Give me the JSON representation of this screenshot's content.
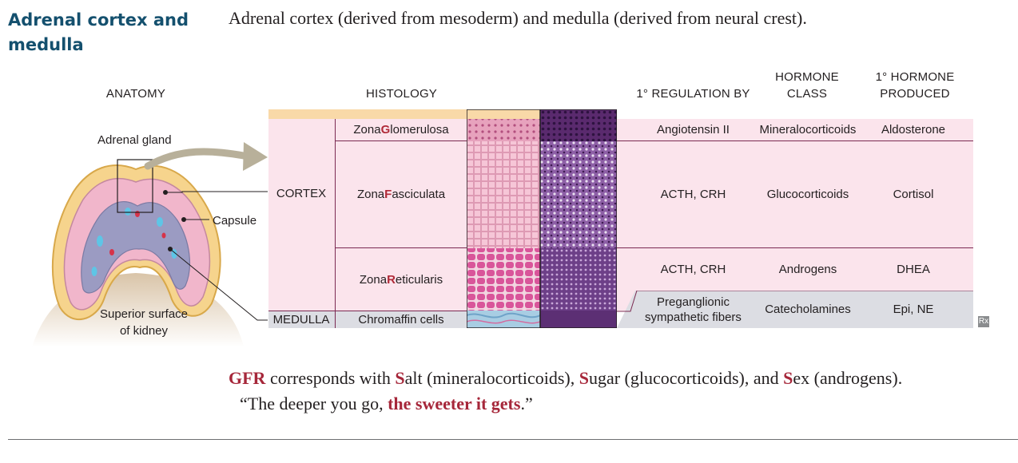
{
  "title": "Adrenal cortex and medulla",
  "intro": "Adrenal cortex (derived from mesoderm) and medulla (derived from neural crest).",
  "headers": {
    "anatomy": "ANATOMY",
    "histology": "HISTOLOGY",
    "regulation": "1° REGULATION BY",
    "hormone_class_1": "HORMONE",
    "hormone_class_2": "CLASS",
    "hormone_produced_1": "1° HORMONE",
    "hormone_produced_2": "PRODUCED"
  },
  "anatomy_labels": {
    "adrenal_gland": "Adrenal gland",
    "capsule": "Capsule",
    "kidney_1": "Superior surface",
    "kidney_2": "of kidney"
  },
  "regions": {
    "cortex": "CORTEX",
    "medulla": "MEDULLA"
  },
  "zones": [
    {
      "pre": "Zona ",
      "key": "G",
      "post": "lomerulosa",
      "regulation": "Angiotensin II",
      "class": "Mineralocorticoids",
      "hormone": "Aldosterone"
    },
    {
      "pre": "Zona ",
      "key": "F",
      "post": "asciculata",
      "regulation": "ACTH, CRH",
      "class": "Glucocorticoids",
      "hormone": "Cortisol"
    },
    {
      "pre": "Zona ",
      "key": "R",
      "post": "eticularis",
      "regulation": "ACTH, CRH",
      "class": "Androgens",
      "hormone": "DHEA"
    }
  ],
  "medulla_row": {
    "zone": "Chromaffin cells",
    "regulation_1": "Preganglionic",
    "regulation_2": "sympathetic fibers",
    "class": "Catecholamines",
    "hormone": "Epi, NE"
  },
  "mnemonic": {
    "l1_a": "GFR",
    "l1_b": " corresponds with ",
    "l1_c": "S",
    "l1_d": "alt (mineralocorticoids), ",
    "l1_e": "S",
    "l1_f": "ugar (glucocorticoids), and ",
    "l1_g": "S",
    "l1_h": "ex (androgens).",
    "l2_a": "“The deeper you go, ",
    "l2_b": "the sweeter it gets",
    "l2_c": ".”"
  },
  "rx_badge": "Rx",
  "colors": {
    "title": "#14506e",
    "pink_panel": "#fbe4ec",
    "medulla_panel": "#dcdde3",
    "capsule_band": "#f9d9a8",
    "row_line": "#7b2a52",
    "highlight": "#b02a38"
  }
}
